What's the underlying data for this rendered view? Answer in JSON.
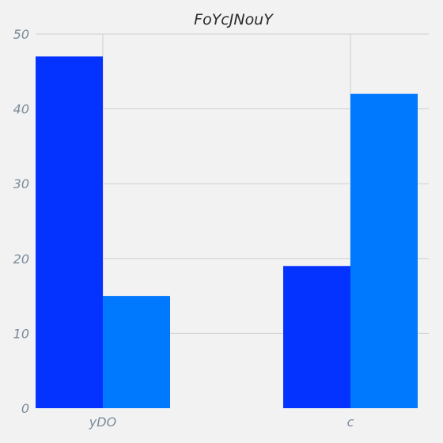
{
  "chart_data": {
    "type": "bar",
    "title": "FoYcJNouY",
    "categories": [
      "yDO",
      "c"
    ],
    "series": [
      {
        "color": "#0433ff",
        "values": [
          47,
          19
        ]
      },
      {
        "color": "#0079ff",
        "values": [
          15,
          42
        ]
      }
    ],
    "ylim": [
      0,
      50
    ],
    "yticks": [
      0,
      10,
      20,
      30,
      40,
      50
    ],
    "grid": true,
    "background": "#f2f2f2",
    "grid_color": "#cfcfcf",
    "text_color": "#7a8a99"
  }
}
